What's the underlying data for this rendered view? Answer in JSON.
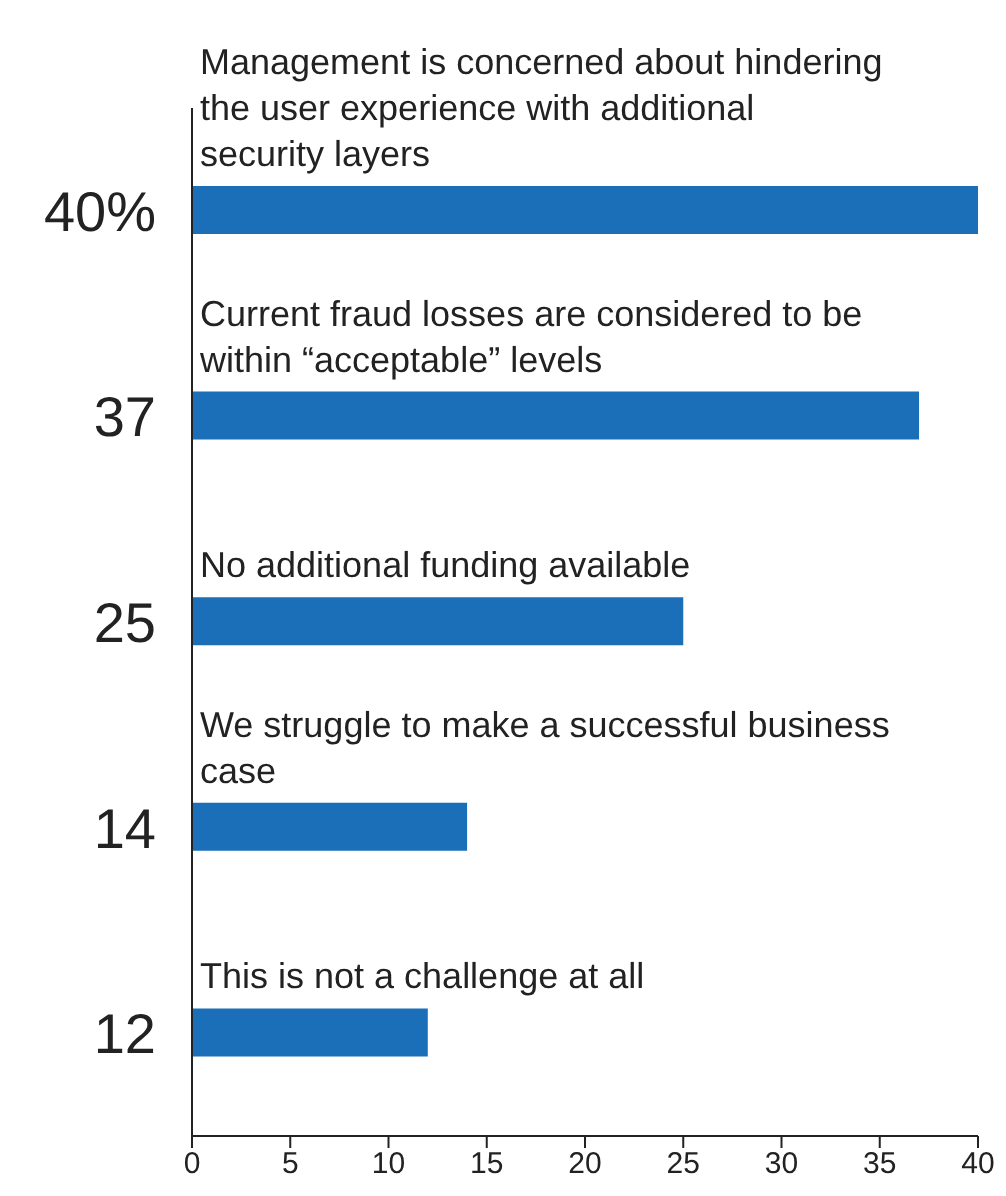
{
  "chart_data": {
    "type": "bar",
    "orientation": "horizontal",
    "categories": [
      "Management is concerned about hindering the user experience with additional security layers",
      "Current fraud losses are considered to be within “acceptable” levels",
      "No additional funding available",
      "We struggle to make a successful business case",
      "This is not a challenge at all"
    ],
    "values": [
      40,
      37,
      25,
      14,
      12
    ],
    "value_labels": [
      "40%",
      "37",
      "25",
      "14",
      "12"
    ],
    "color": "#1b6fb8",
    "xlim": [
      0,
      40
    ],
    "xticks": [
      0,
      5,
      10,
      15,
      20,
      25,
      30,
      35,
      40
    ]
  }
}
